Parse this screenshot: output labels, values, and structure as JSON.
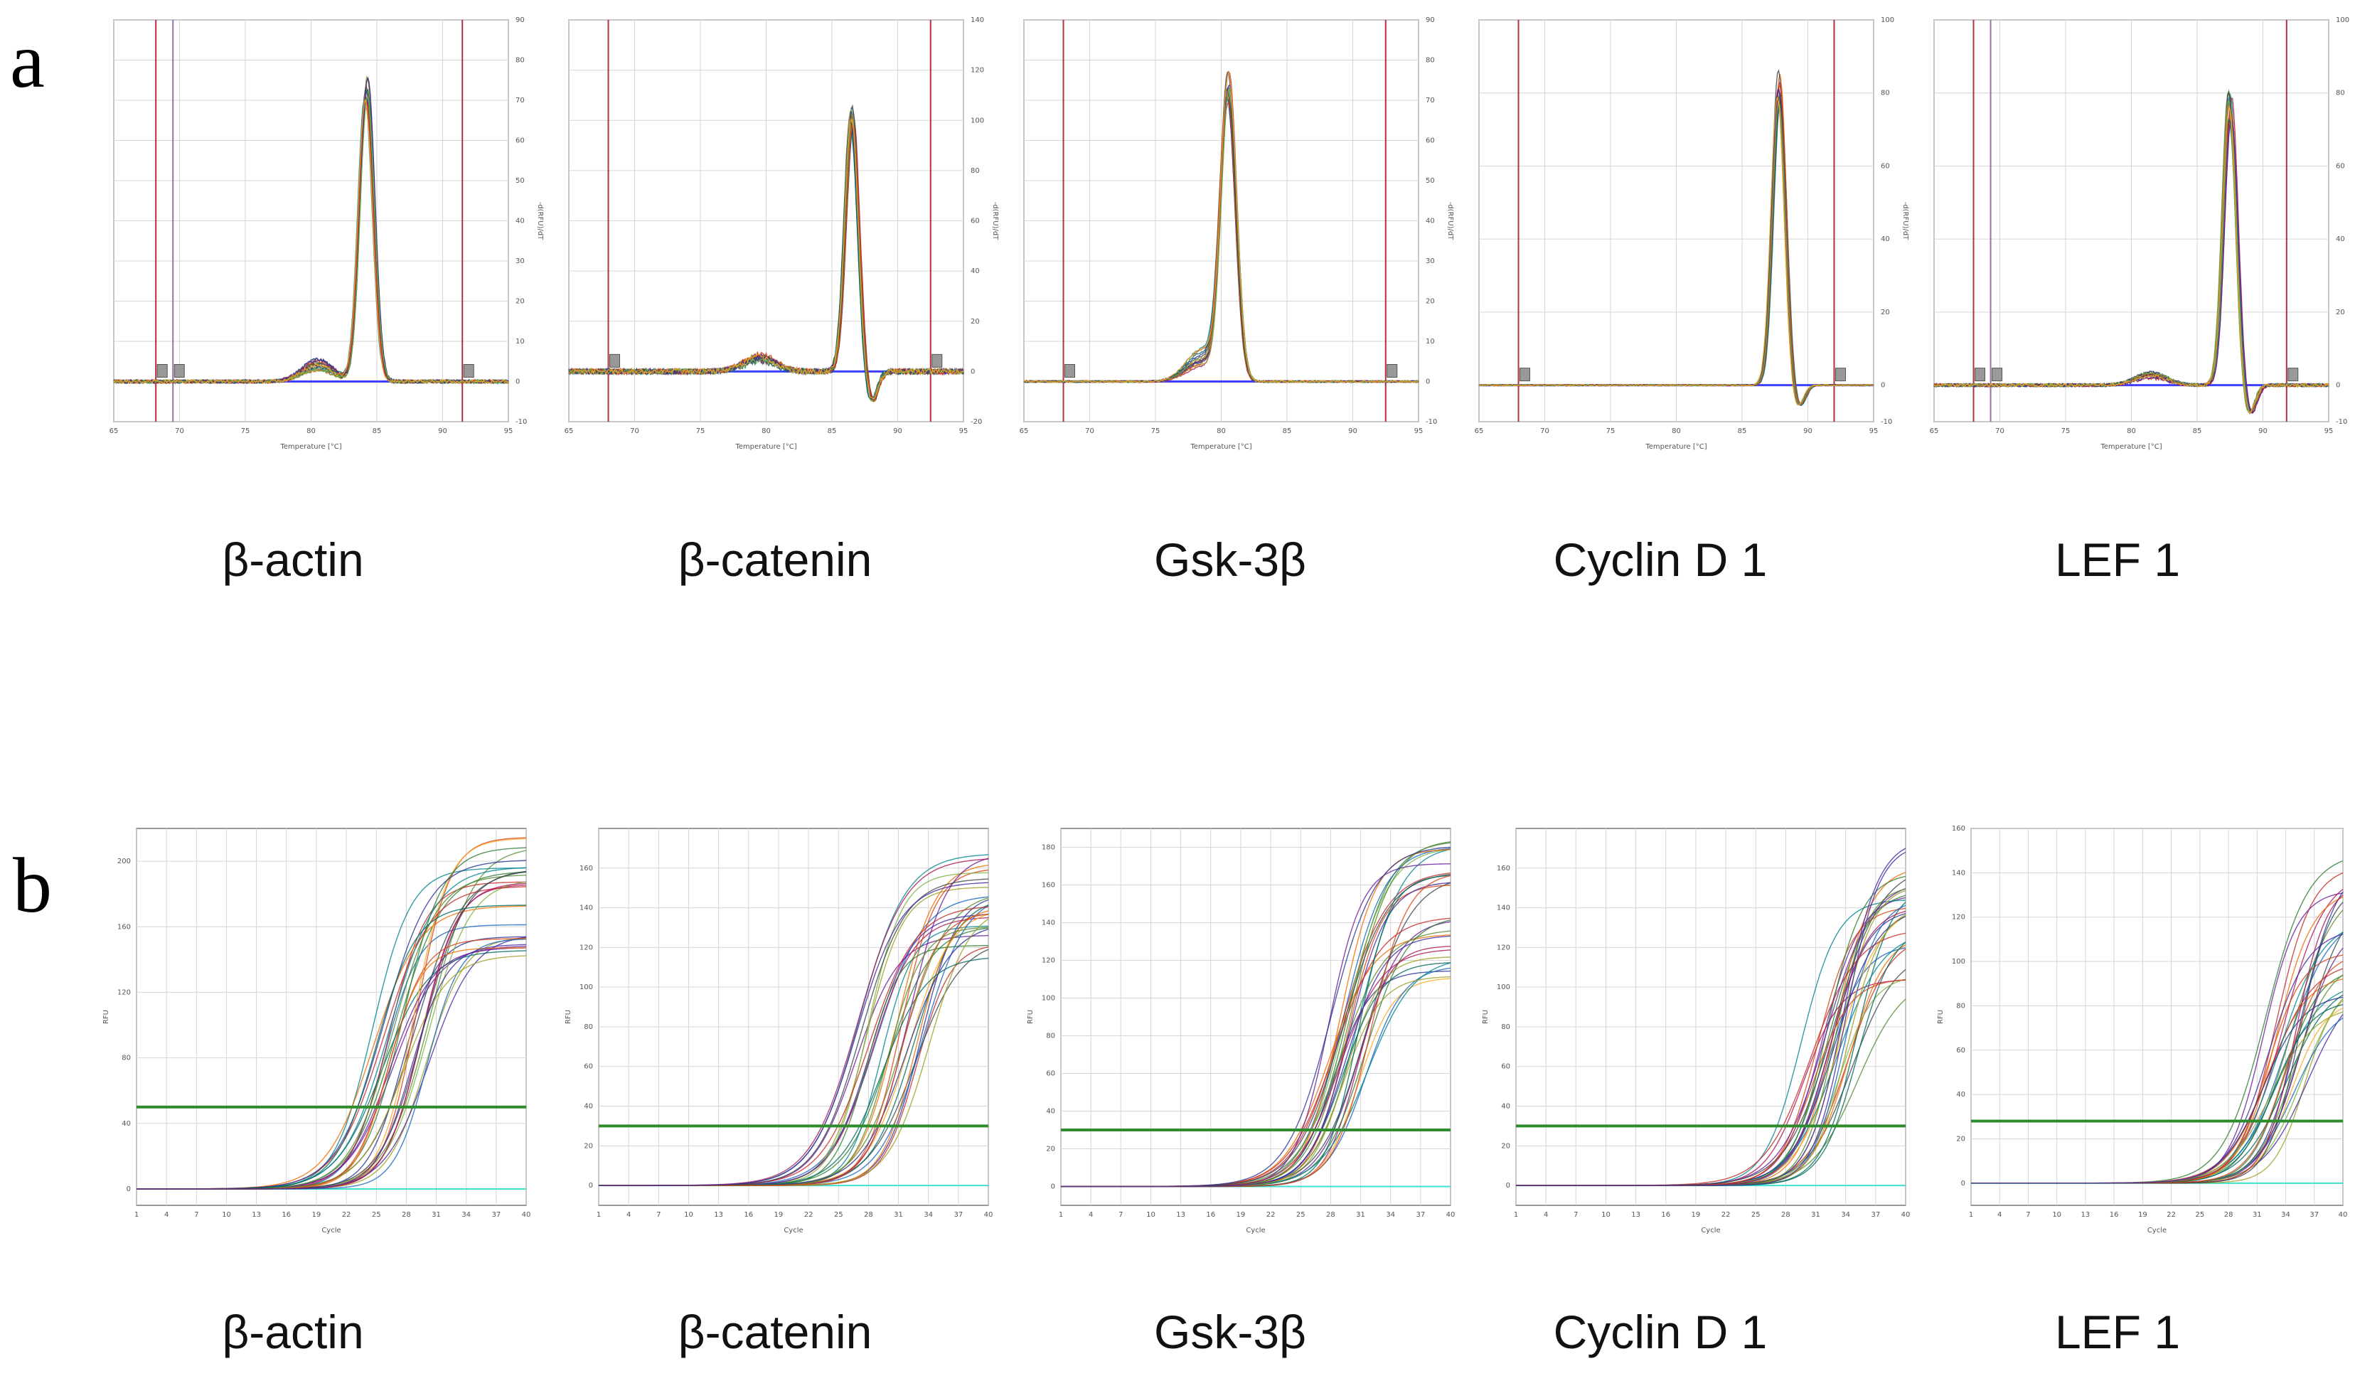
{
  "panels": {
    "a": {
      "letter": "a",
      "type": "melt",
      "xlabel": "Temperature [°C]",
      "ylabel": "-d(RFU)/dT",
      "genes": [
        {
          "label": "β-actin",
          "xlim": [
            65,
            95
          ],
          "ylim": [
            -10,
            90
          ],
          "x_ticks": [
            65,
            70,
            75,
            80,
            85,
            90,
            95
          ],
          "y_ticks": [
            -10,
            0,
            10,
            20,
            30,
            40,
            50,
            60,
            70,
            80,
            90
          ],
          "marker_lines": [
            68.2,
            69.5,
            91.5
          ],
          "peak_temp": 84.2,
          "peak_height": 72,
          "peak_spread": 8,
          "peak_width": 0.55,
          "bump_temp": 80.5,
          "bump_height": 4,
          "undershoot": 0,
          "n_traces": 16,
          "noise": 0.9
        },
        {
          "label": "β-catenin",
          "xlim": [
            65,
            95
          ],
          "ylim": [
            -20,
            140
          ],
          "x_ticks": [
            65,
            70,
            75,
            80,
            85,
            90,
            95
          ],
          "y_ticks": [
            -20,
            0,
            20,
            40,
            60,
            80,
            100,
            120,
            140
          ],
          "marker_lines": [
            68.0,
            92.5
          ],
          "peak_temp": 86.5,
          "peak_height": 100,
          "peak_spread": 12,
          "peak_width": 0.5,
          "bump_temp": 79.5,
          "bump_height": 5,
          "undershoot": 12,
          "n_traces": 16,
          "noise": 2.2
        },
        {
          "label": "Gsk-3β",
          "xlim": [
            65,
            95
          ],
          "ylim": [
            -10,
            90
          ],
          "x_ticks": [
            65,
            70,
            75,
            80,
            85,
            90,
            95
          ],
          "y_ticks": [
            -10,
            0,
            10,
            20,
            30,
            40,
            50,
            60,
            70,
            80,
            90
          ],
          "marker_lines": [
            68.0,
            92.5
          ],
          "peak_temp": 80.5,
          "peak_height": 72,
          "peak_spread": 8,
          "peak_width": 0.6,
          "bump_temp": 78.5,
          "bump_height": 6,
          "undershoot": 0,
          "n_traces": 16,
          "noise": 0.5
        },
        {
          "label": "Cyclin D 1",
          "xlim": [
            65,
            95
          ],
          "ylim": [
            -10,
            100
          ],
          "x_ticks": [
            65,
            70,
            75,
            80,
            85,
            90,
            95
          ],
          "y_ticks": [
            -10,
            0,
            20,
            40,
            60,
            80,
            100
          ],
          "marker_lines": [
            68.0,
            92.0
          ],
          "peak_temp": 87.8,
          "peak_height": 82,
          "peak_spread": 10,
          "peak_width": 0.5,
          "bump_temp": 0,
          "bump_height": 0,
          "undershoot": 6,
          "n_traces": 16,
          "noise": 0.4
        },
        {
          "label": "LEF 1",
          "xlim": [
            65,
            95
          ],
          "ylim": [
            -10,
            100
          ],
          "x_ticks": [
            65,
            70,
            75,
            80,
            85,
            90,
            95
          ],
          "y_ticks": [
            -10,
            0,
            20,
            40,
            60,
            80,
            100
          ],
          "marker_lines": [
            68.0,
            69.3,
            91.8
          ],
          "peak_temp": 87.5,
          "peak_height": 76,
          "peak_spread": 10,
          "peak_width": 0.5,
          "bump_temp": 81.5,
          "bump_height": 3,
          "undershoot": 8,
          "n_traces": 16,
          "noise": 0.9
        }
      ]
    },
    "b": {
      "letter": "b",
      "type": "amplification",
      "xlabel": "Cycle",
      "ylabel": "RFU",
      "genes": [
        {
          "label": "β-actin",
          "xlim": [
            1,
            40
          ],
          "ylim": [
            -10,
            220
          ],
          "y_ticks": [
            0,
            40,
            80,
            120,
            160,
            200
          ],
          "threshold": 50,
          "baseline_line": 0,
          "ct_min": 22,
          "ct_max": 28,
          "plateau_min": 140,
          "plateau_max": 215,
          "n_traces": 30
        },
        {
          "label": "β-catenin",
          "xlim": [
            1,
            40
          ],
          "ylim": [
            -10,
            180
          ],
          "y_ticks": [
            0,
            20,
            40,
            60,
            80,
            100,
            120,
            140,
            160
          ],
          "threshold": 30,
          "baseline_line": 0,
          "ct_min": 24,
          "ct_max": 32,
          "plateau_min": 110,
          "plateau_max": 170,
          "n_traces": 30
        },
        {
          "label": "Gsk-3β",
          "xlim": [
            1,
            40
          ],
          "ylim": [
            -10,
            190
          ],
          "y_ticks": [
            0,
            20,
            40,
            60,
            80,
            100,
            120,
            140,
            160,
            180
          ],
          "threshold": 30,
          "baseline_line": 0,
          "ct_min": 25,
          "ct_max": 30,
          "plateau_min": 110,
          "plateau_max": 185,
          "n_traces": 30
        },
        {
          "label": "Cyclin D 1",
          "xlim": [
            1,
            40
          ],
          "ylim": [
            -10,
            180
          ],
          "y_ticks": [
            0,
            20,
            40,
            60,
            80,
            100,
            120,
            140,
            160
          ],
          "threshold": 30,
          "baseline_line": 0,
          "ct_min": 27,
          "ct_max": 33,
          "plateau_min": 100,
          "plateau_max": 180,
          "n_traces": 30
        },
        {
          "label": "LEF 1",
          "xlim": [
            1,
            40
          ],
          "ylim": [
            -10,
            160
          ],
          "y_ticks": [
            0,
            20,
            40,
            60,
            80,
            100,
            120,
            140,
            160
          ],
          "threshold": 28,
          "baseline_line": 0,
          "ct_min": 29,
          "ct_max": 34,
          "plateau_min": 80,
          "plateau_max": 150,
          "n_traces": 30
        }
      ]
    }
  },
  "colors": {
    "trace_palette": [
      "#2e7d32",
      "#1565c0",
      "#c62828",
      "#6a1b9a",
      "#00838f",
      "#ef6c00",
      "#558b2f",
      "#283593",
      "#ad1457",
      "#9e9d24",
      "#37474f",
      "#00695c",
      "#d84315",
      "#4527a0",
      "#7cb342",
      "#f9a825"
    ],
    "melt_baseline": "#3f3fff",
    "marker_line": "#b03040",
    "marker_line_2": "#9a6fb0",
    "threshold": "#2e8b2e",
    "baseline": "#40e0d0",
    "grid": "#d6d6d6",
    "axis": "#777777"
  }
}
